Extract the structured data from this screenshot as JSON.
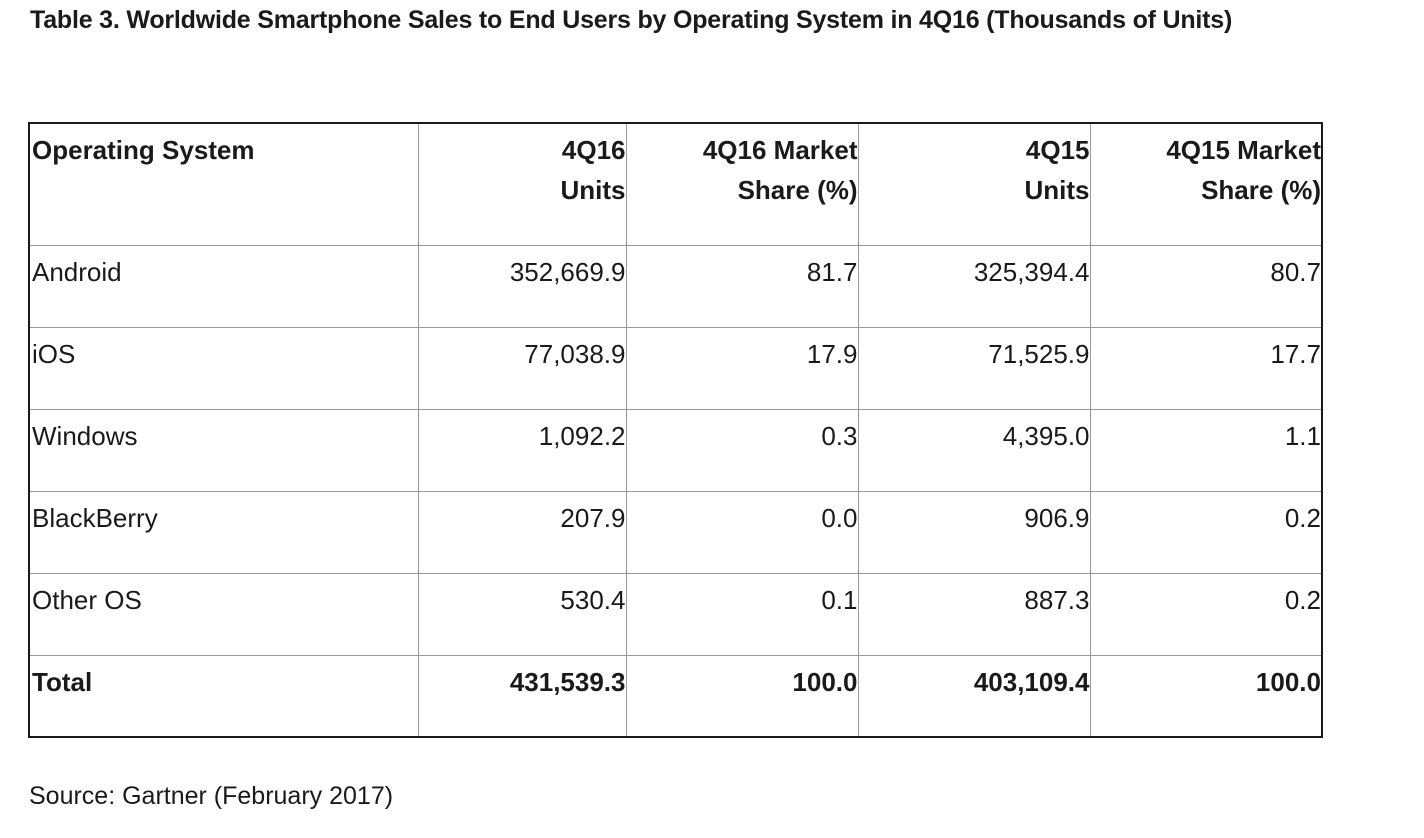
{
  "chart_data": {
    "type": "table",
    "title": "Table 3. Worldwide Smartphone Sales to End Users by Operating System in 4Q16 (Thousands of Units)",
    "columns": [
      "Operating System",
      "4Q16 Units",
      "4Q16 Market Share (%)",
      "4Q15 Units",
      "4Q15 Market Share (%)"
    ],
    "header_lines": [
      [
        "Operating System"
      ],
      [
        "4Q16",
        "Units"
      ],
      [
        "4Q16 Market",
        "Share (%)"
      ],
      [
        "4Q15",
        "Units"
      ],
      [
        "4Q15 Market",
        "Share (%)"
      ]
    ],
    "rows": [
      [
        "Android",
        "352,669.9",
        "81.7",
        "325,394.4",
        "80.7"
      ],
      [
        "iOS",
        "77,038.9",
        "17.9",
        "71,525.9",
        "17.7"
      ],
      [
        "Windows",
        "1,092.2",
        "0.3",
        "4,395.0",
        "1.1"
      ],
      [
        "BlackBerry",
        "207.9",
        "0.0",
        "906.9",
        "0.2"
      ],
      [
        "Other OS",
        "530.4",
        "0.1",
        "887.3",
        "0.2"
      ],
      [
        "Total",
        "431,539.3",
        "100.0",
        "403,109.4",
        "100.0"
      ]
    ],
    "source": "Source: Gartner (February 2017)"
  }
}
